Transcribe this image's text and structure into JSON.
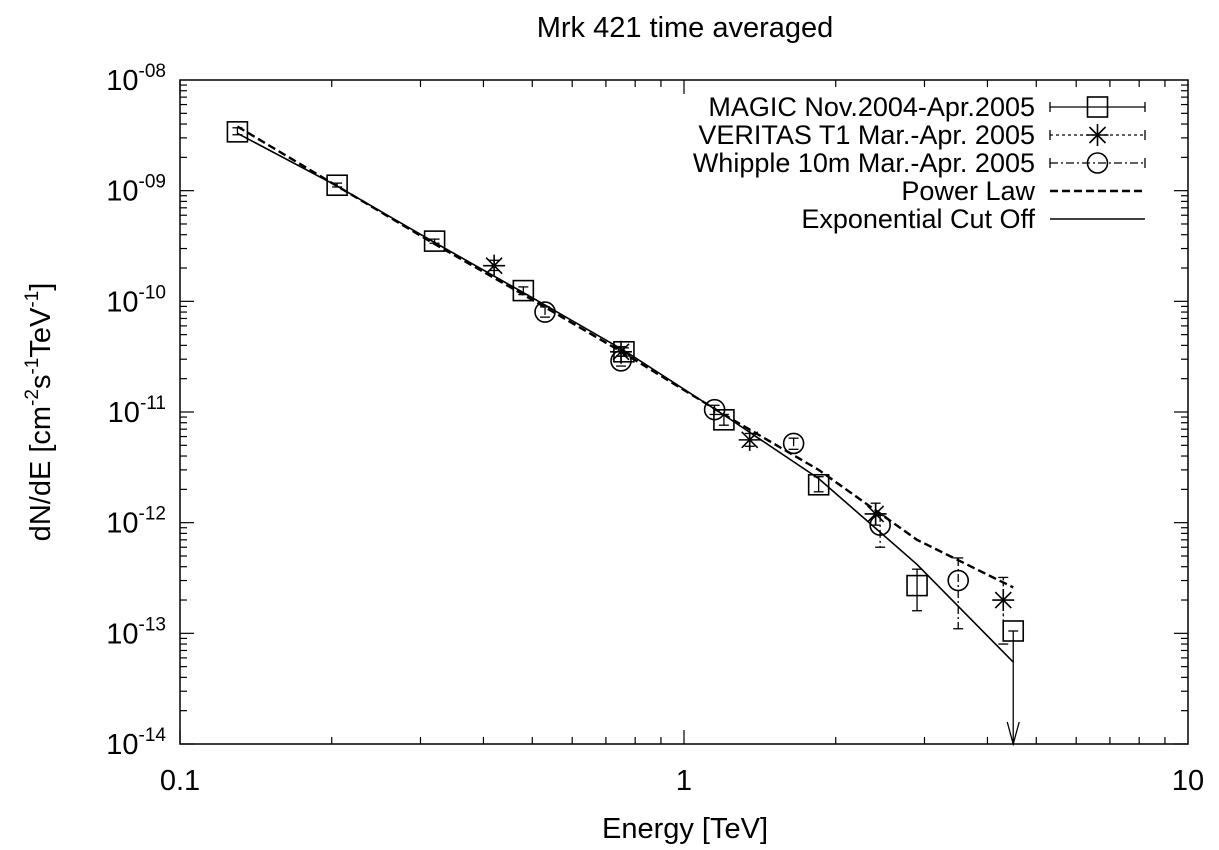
{
  "chart_data": {
    "type": "scatter",
    "title": "Mrk 421 time averaged",
    "xlabel": "Energy [TeV]",
    "ylabel": {
      "base": "dN/dE [cm",
      "sup1": "-2",
      "mid1": "s",
      "sup2": "-1",
      "mid2": "TeV",
      "sup3": "-1",
      "end": "]"
    },
    "xscale": "log",
    "yscale": "log",
    "xlim": [
      0.1,
      10
    ],
    "ylim": [
      1e-14,
      1e-08
    ],
    "xticks": [
      {
        "value": 0.1,
        "label": "0.1"
      },
      {
        "value": 1,
        "label": "1"
      },
      {
        "value": 10,
        "label": "10"
      }
    ],
    "yticks": [
      {
        "value": 1e-14,
        "base": "10",
        "exp": "-14"
      },
      {
        "value": 1e-13,
        "base": "10",
        "exp": "-13"
      },
      {
        "value": 1e-12,
        "base": "10",
        "exp": "-12"
      },
      {
        "value": 1e-11,
        "base": "10",
        "exp": "-11"
      },
      {
        "value": 1e-10,
        "base": "10",
        "exp": "-10"
      },
      {
        "value": 1e-09,
        "base": "10",
        "exp": "-09"
      },
      {
        "value": 1e-08,
        "base": "10",
        "exp": "-08"
      }
    ],
    "legend_position": "top-right",
    "grid": false,
    "series": [
      {
        "name": "MAGIC Nov.2004-Apr.2005",
        "marker": "square",
        "points": [
          {
            "x": 0.13,
            "y": 3.4e-09,
            "ylo": 3.2e-09,
            "yhi": 3.7e-09
          },
          {
            "x": 0.205,
            "y": 1.12e-09,
            "ylo": 1.08e-09,
            "yhi": 1.17e-09
          },
          {
            "x": 0.32,
            "y": 3.5e-10,
            "ylo": 3.35e-10,
            "yhi": 3.65e-10
          },
          {
            "x": 0.48,
            "y": 1.25e-10,
            "ylo": 1.15e-10,
            "yhi": 1.35e-10
          },
          {
            "x": 0.76,
            "y": 3.5e-11,
            "ylo": 3.2e-11,
            "yhi": 3.8e-11
          },
          {
            "x": 1.2,
            "y": 8.5e-12,
            "ylo": 7.6e-12,
            "yhi": 9.5e-12
          },
          {
            "x": 1.85,
            "y": 2.2e-12,
            "ylo": 1.9e-12,
            "yhi": 2.6e-12
          },
          {
            "x": 2.9,
            "y": 2.7e-13,
            "ylo": 1.6e-13,
            "yhi": 3.8e-13
          },
          {
            "x": 4.5,
            "y": 1.05e-13,
            "ylo": 1e-14,
            "yhi": 1.05e-13,
            "upper_limit": true
          }
        ]
      },
      {
        "name": "VERITAS T1 Mar.-Apr. 2005",
        "marker": "star",
        "points": [
          {
            "x": 0.42,
            "y": 2.1e-10,
            "ylo": 1.9e-10,
            "yhi": 2.35e-10
          },
          {
            "x": 0.75,
            "y": 3.5e-11,
            "ylo": 3.2e-11,
            "yhi": 3.9e-11
          },
          {
            "x": 1.35,
            "y": 5.6e-12,
            "ylo": 4.9e-12,
            "yhi": 6.4e-12
          },
          {
            "x": 2.4,
            "y": 1.2e-12,
            "ylo": 9.5e-13,
            "yhi": 1.5e-12
          },
          {
            "x": 4.3,
            "y": 2e-13,
            "ylo": 8e-14,
            "yhi": 3.2e-13
          }
        ]
      },
      {
        "name": "Whipple 10m Mar.-Apr. 2005",
        "marker": "circle",
        "points": [
          {
            "x": 0.53,
            "y": 8e-11,
            "ylo": 7.2e-11,
            "yhi": 8.9e-11
          },
          {
            "x": 0.75,
            "y": 2.9e-11,
            "ylo": 2.6e-11,
            "yhi": 3.2e-11
          },
          {
            "x": 1.15,
            "y": 1.05e-11,
            "ylo": 9.5e-12,
            "yhi": 1.15e-11
          },
          {
            "x": 1.65,
            "y": 5.2e-12,
            "ylo": 4.6e-12,
            "yhi": 5.8e-12
          },
          {
            "x": 2.45,
            "y": 9.5e-13,
            "ylo": 6e-13,
            "yhi": 1.2e-12
          },
          {
            "x": 3.5,
            "y": 3e-13,
            "ylo": 1.1e-13,
            "yhi": 4.8e-13
          }
        ]
      }
    ],
    "fits": [
      {
        "name": "Power Law",
        "style": "dashed",
        "points": [
          {
            "x": 0.13,
            "y": 3.8e-09
          },
          {
            "x": 0.205,
            "y": 1.1e-09
          },
          {
            "x": 0.32,
            "y": 3.3e-10
          },
          {
            "x": 0.48,
            "y": 1.15e-10
          },
          {
            "x": 0.76,
            "y": 3.4e-11
          },
          {
            "x": 1.2,
            "y": 9.5e-12
          },
          {
            "x": 1.85,
            "y": 3e-12
          },
          {
            "x": 2.9,
            "y": 7e-13
          },
          {
            "x": 4.5,
            "y": 2.6e-13
          }
        ]
      },
      {
        "name": "Exponential Cut Off",
        "style": "solid",
        "points": [
          {
            "x": 0.13,
            "y": 3.3e-09
          },
          {
            "x": 0.205,
            "y": 1.1e-09
          },
          {
            "x": 0.32,
            "y": 3.4e-10
          },
          {
            "x": 0.48,
            "y": 1.2e-10
          },
          {
            "x": 0.76,
            "y": 3.6e-11
          },
          {
            "x": 1.2,
            "y": 9.4e-12
          },
          {
            "x": 1.85,
            "y": 2.5e-12
          },
          {
            "x": 2.9,
            "y": 4.2e-13
          },
          {
            "x": 4.5,
            "y": 5.5e-14
          }
        ]
      }
    ]
  }
}
